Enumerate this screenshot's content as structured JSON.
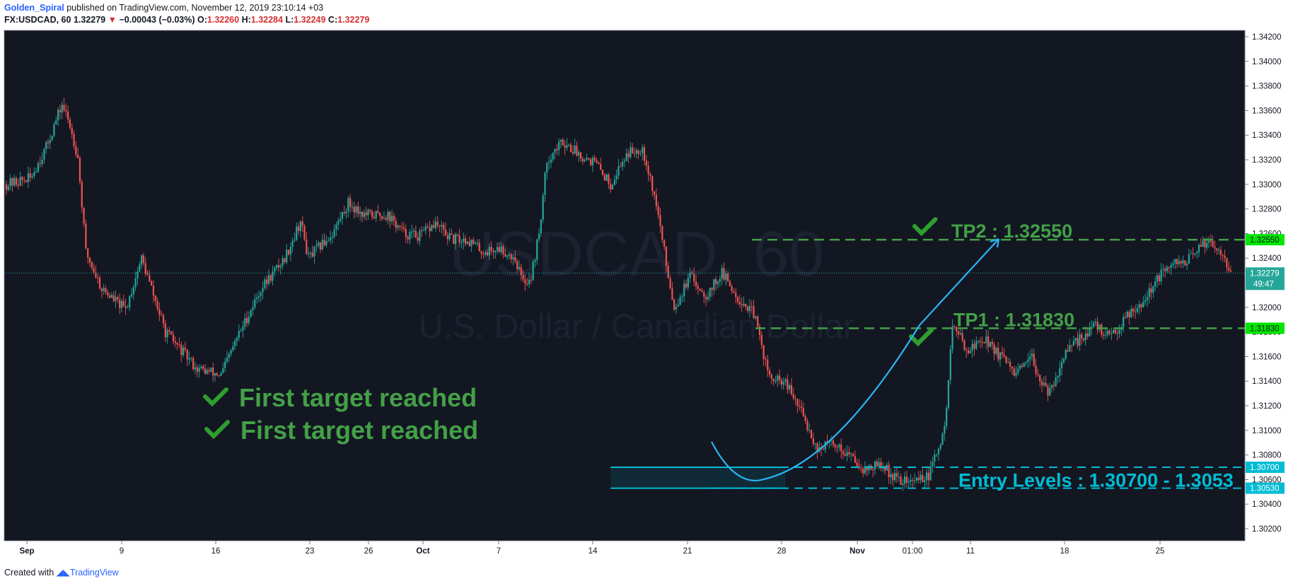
{
  "header": {
    "user": "Golden_Spiral",
    "published": "published on TradingView.com, November 12, 2019 23:10:14 +03",
    "symbol": "FX:USDCAD, 60",
    "last": "1.32279",
    "change_arrow": "▼",
    "change": "−0.00043 (−0.03%)",
    "o_label": "O:",
    "o_val": "1.32260",
    "h_label": "H:",
    "h_val": "1.32284",
    "l_label": "L:",
    "l_val": "1.32249",
    "c_label": "C:",
    "c_val": "1.32279"
  },
  "watermark": {
    "symbol": "USDCAD, 60",
    "name": "U.S. Dollar / Canadian Dollar"
  },
  "footer": {
    "created": "Created with",
    "brand": "TradingView"
  },
  "colors": {
    "background": "#131722",
    "up": "#26a69a",
    "down": "#ef5350",
    "target": "#43a047",
    "target_label": "#00e600",
    "entry": "#00bcd4"
  },
  "chart_data": {
    "type": "candlestick",
    "title": "FX:USDCAD, 60",
    "x_ticks": [
      "Sep",
      "9",
      "16",
      "23",
      "26",
      "Oct",
      "7",
      "14",
      "21",
      "28",
      "Nov",
      "01:00",
      "11",
      "18",
      "25"
    ],
    "y_ticks": [
      "1.34200",
      "1.34000",
      "1.33800",
      "1.33600",
      "1.33400",
      "1.33200",
      "1.33000",
      "1.32800",
      "1.32600",
      "1.32400",
      "1.32200",
      "1.32000",
      "1.31800",
      "1.31600",
      "1.31400",
      "1.31200",
      "1.31000",
      "1.30800",
      "1.30600",
      "1.30400",
      "1.30200"
    ],
    "ylim": [
      1.3014,
      1.3424
    ],
    "price_path": [
      [
        0,
        1.33
      ],
      [
        3,
        1.3305
      ],
      [
        5,
        1.333
      ],
      [
        7,
        1.3365
      ],
      [
        8,
        1.3348
      ],
      [
        9,
        1.3322
      ],
      [
        10,
        1.3245
      ],
      [
        12,
        1.3215
      ],
      [
        15,
        1.3198
      ],
      [
        17,
        1.324
      ],
      [
        20,
        1.318
      ],
      [
        24,
        1.315
      ],
      [
        27,
        1.3145
      ],
      [
        29,
        1.3175
      ],
      [
        32,
        1.3215
      ],
      [
        35,
        1.324
      ],
      [
        37,
        1.327
      ],
      [
        38,
        1.324
      ],
      [
        41,
        1.326
      ],
      [
        43,
        1.3285
      ],
      [
        45,
        1.3275
      ],
      [
        48,
        1.3275
      ],
      [
        50,
        1.326
      ],
      [
        52,
        1.3258
      ],
      [
        54,
        1.3268
      ],
      [
        56,
        1.3255
      ],
      [
        58,
        1.3255
      ],
      [
        60,
        1.3245
      ],
      [
        62,
        1.3248
      ],
      [
        64,
        1.324
      ],
      [
        65,
        1.322
      ],
      [
        66,
        1.3225
      ],
      [
        67,
        1.326
      ],
      [
        68,
        1.332
      ],
      [
        70,
        1.3335
      ],
      [
        72,
        1.3325
      ],
      [
        74,
        1.3318
      ],
      [
        76,
        1.33
      ],
      [
        78,
        1.3325
      ],
      [
        80,
        1.333
      ],
      [
        81,
        1.3305
      ],
      [
        82,
        1.3275
      ],
      [
        83,
        1.3235
      ],
      [
        84,
        1.32
      ],
      [
        86,
        1.3225
      ],
      [
        88,
        1.321
      ],
      [
        90,
        1.3228
      ],
      [
        92,
        1.3208
      ],
      [
        94,
        1.3195
      ],
      [
        96,
        1.3142
      ],
      [
        98,
        1.3138
      ],
      [
        100,
        1.3115
      ],
      [
        102,
        1.3085
      ],
      [
        104,
        1.309
      ],
      [
        106,
        1.308
      ],
      [
        108,
        1.3068
      ],
      [
        110,
        1.3072
      ],
      [
        112,
        1.306
      ],
      [
        114,
        1.3058
      ],
      [
        115,
        1.3062
      ],
      [
        116,
        1.3062
      ],
      [
        117,
        1.3082
      ],
      [
        118,
        1.31
      ],
      [
        119,
        1.3185
      ],
      [
        121,
        1.3165
      ],
      [
        123,
        1.3175
      ],
      [
        125,
        1.316
      ],
      [
        127,
        1.3145
      ],
      [
        129,
        1.3158
      ],
      [
        131,
        1.3128
      ],
      [
        133,
        1.316
      ],
      [
        135,
        1.3175
      ],
      [
        137,
        1.3185
      ],
      [
        139,
        1.3175
      ],
      [
        141,
        1.3195
      ],
      [
        143,
        1.3205
      ],
      [
        145,
        1.3225
      ],
      [
        147,
        1.3235
      ],
      [
        149,
        1.324
      ],
      [
        151,
        1.3255
      ],
      [
        153,
        1.3245
      ],
      [
        154,
        1.3228
      ]
    ],
    "levels": [
      {
        "name": "TP2",
        "value": 1.3255,
        "label": "TP2 : 1.32550",
        "tag": "1.32550"
      },
      {
        "name": "TP1",
        "value": 1.3183,
        "label": "TP1 : 1.31830",
        "tag": "1.31830"
      },
      {
        "name": "Entry high",
        "value": 1.307,
        "tag": "1.30700"
      },
      {
        "name": "Entry low",
        "value": 1.3053,
        "tag": "1.30530"
      }
    ],
    "entry_label": "Entry Levels : 1.30700 - 1.3053",
    "last_price": {
      "value": 1.32279,
      "tag": "1.32279",
      "countdown": "49:47"
    },
    "annotations": [
      "First target reached",
      "First target reached"
    ]
  }
}
